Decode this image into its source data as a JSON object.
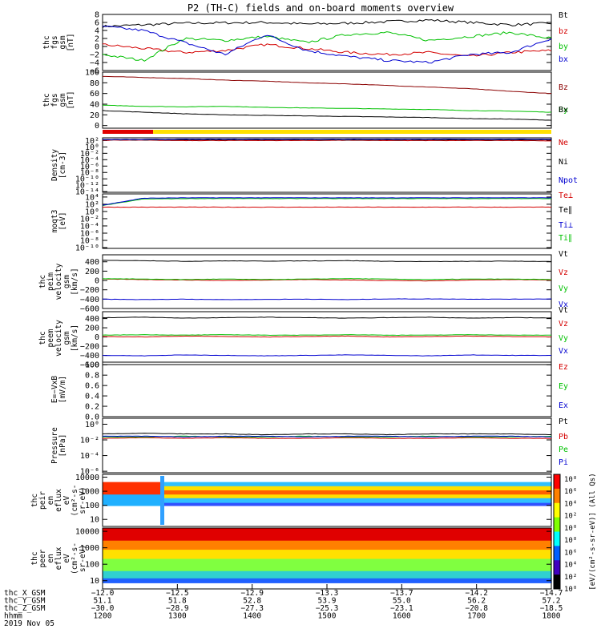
{
  "chart_data": {
    "type": "line",
    "title": "P2 (TH-C) fields and on-board moments overview",
    "panels": [
      {
        "id": "fgs_gsm",
        "ylabel": [
          "thc",
          "fgs",
          "gsm",
          "[nT]"
        ],
        "yticks": [
          "8",
          "6",
          "4",
          "2",
          "0",
          "−2",
          "−4",
          "−6"
        ],
        "ylim": [
          -6,
          8
        ],
        "legend": [
          {
            "name": "Bt",
            "color": "#000000"
          },
          {
            "name": "bz",
            "color": "#d40000"
          },
          {
            "name": "by",
            "color": "#00c000"
          },
          {
            "name": "bx",
            "color": "#0000d0"
          }
        ],
        "series": [
          {
            "name": "Bt",
            "color": "#000000",
            "values": [
              5.0,
              5.4,
              5.8,
              5.9,
              6.0,
              5.6,
              5.8,
              6.2,
              6.6,
              6.0,
              5.4,
              5.8
            ]
          },
          {
            "name": "bz",
            "color": "#d40000",
            "values": [
              0.5,
              -0.5,
              -1.5,
              -1.0,
              0.5,
              -0.5,
              -1.5,
              -2.0,
              -1.5,
              -2.5,
              -1.5,
              -1.0
            ]
          },
          {
            "name": "by",
            "color": "#00c000",
            "values": [
              -2.0,
              -3.5,
              2.0,
              1.5,
              2.5,
              1.0,
              3.0,
              3.5,
              1.5,
              2.5,
              3.5,
              2.0
            ]
          },
          {
            "name": "bx",
            "color": "#0000d0",
            "values": [
              5.0,
              4.0,
              1.0,
              -2.0,
              3.0,
              -1.0,
              -2.5,
              -3.5,
              -4.0,
              -2.0,
              -1.5,
              2.0
            ]
          }
        ]
      },
      {
        "id": "fgs_gse",
        "ylabel": [
          "thc",
          "fgs",
          "gsm",
          "[nT]"
        ],
        "yticks": [
          "100",
          "80",
          "60",
          "40",
          "20",
          "0"
        ],
        "ylim": [
          -5,
          100
        ],
        "legend": [
          {
            "name": "Bz",
            "color": "#8b0000"
          },
          {
            "name": "By",
            "color": "#00c000"
          },
          {
            "name": "Bx",
            "color": "#000000"
          }
        ],
        "series": [
          {
            "name": "Bz",
            "color": "#8b0000",
            "values": [
              92,
              90,
              88,
              85,
              83,
              80,
              78,
              75,
              72,
              69,
              64,
              60
            ]
          },
          {
            "name": "By",
            "color": "#00c000",
            "values": [
              38,
              36,
              35,
              36,
              34,
              33,
              32,
              31,
              30,
              28,
              27,
              25
            ]
          },
          {
            "name": "Bx",
            "color": "#000000",
            "values": [
              28,
              25,
              22,
              20,
              19,
              18,
              17,
              16,
              15,
              13,
              12,
              10
            ]
          }
        ]
      },
      {
        "id": "density",
        "ylabel": [
          "Density",
          "[cm-3]"
        ],
        "yticks": [
          "10²",
          "10⁰",
          "10⁻²",
          "10⁻⁴",
          "10⁻⁶",
          "10⁻⁸",
          "10⁻¹⁰",
          "10⁻¹²",
          "10⁻¹⁴"
        ],
        "ylim": [
          -14,
          2
        ],
        "log": true,
        "legend": [
          {
            "name": "Ne",
            "color": "#d40000"
          },
          {
            "name": "Ni",
            "color": "#000000"
          },
          {
            "name": "Npot",
            "color": "#0000d0"
          }
        ],
        "series": [
          {
            "name": "Ne",
            "color": "#d40000",
            "values": [
              1.3,
              1.3,
              1.2,
              1.2,
              1.2,
              1.2,
              1.3,
              1.2,
              1.2,
              1.2,
              1.2,
              1.1
            ]
          },
          {
            "name": "Ni",
            "color": "#000000",
            "values": [
              1.4,
              1.4,
              1.4,
              1.4,
              1.4,
              1.4,
              1.4,
              1.4,
              1.4,
              1.4,
              1.4,
              1.4
            ]
          },
          {
            "name": "Npot",
            "color": "#0000d0",
            "values": [
              1.5,
              1.5,
              1.6,
              1.6,
              1.6,
              1.6,
              1.6,
              1.6,
              1.6,
              1.6,
              1.6,
              1.6
            ]
          }
        ]
      },
      {
        "id": "temperature",
        "ylabel": [
          "moqt3",
          "[eV]"
        ],
        "yticks": [
          "10⁴",
          "10²",
          "10⁰",
          "10⁻²",
          "10⁻⁴",
          "10⁻⁶",
          "10⁻⁸",
          "10⁻¹⁰"
        ],
        "ylim": [
          -10,
          4
        ],
        "log": true,
        "legend": [
          {
            "name": "Te⊥",
            "color": "#d40000"
          },
          {
            "name": "Te∥",
            "color": "#000000"
          },
          {
            "name": "Ti⊥",
            "color": "#0000d0"
          },
          {
            "name": "Ti∥",
            "color": "#00c000"
          }
        ],
        "series": [
          {
            "name": "Te⊥",
            "color": "#d40000",
            "values": [
              0.6,
              0.6,
              0.6,
              0.6,
              0.6,
              0.6,
              0.6,
              0.6,
              0.6,
              0.6,
              0.6,
              0.6
            ]
          },
          {
            "name": "Ti∥",
            "color": "#00c000",
            "values": [
              1.0,
              2.7,
              2.8,
              2.8,
              2.8,
              2.8,
              2.8,
              2.8,
              2.8,
              2.8,
              2.8,
              2.8
            ]
          },
          {
            "name": "Ti⊥",
            "color": "#0000d0",
            "values": [
              1.1,
              2.9,
              3.0,
              3.0,
              3.0,
              3.0,
              3.0,
              3.0,
              3.0,
              3.0,
              3.0,
              3.0
            ]
          }
        ]
      },
      {
        "id": "peim_velocity",
        "ylabel": [
          "thc",
          "peim",
          "velocity",
          "gsm",
          "[km/s]"
        ],
        "yticks": [
          "400",
          "200",
          "0",
          "−200",
          "−400",
          "−600"
        ],
        "ylim": [
          -600,
          550
        ],
        "legend": [
          {
            "name": "Vt",
            "color": "#000000"
          },
          {
            "name": "Vz",
            "color": "#d40000"
          },
          {
            "name": "Vy",
            "color": "#00c000"
          },
          {
            "name": "Vx",
            "color": "#0000d0"
          }
        ],
        "series": [
          {
            "name": "Vt",
            "color": "#000000",
            "values": [
              430,
              425,
              410,
              420,
              415,
              420,
              425,
              410,
              405,
              410,
              415,
              405
            ]
          },
          {
            "name": "Vz",
            "color": "#d40000",
            "values": [
              30,
              20,
              10,
              0,
              10,
              20,
              10,
              0,
              -10,
              10,
              20,
              10
            ]
          },
          {
            "name": "Vy",
            "color": "#00c000",
            "values": [
              40,
              30,
              20,
              30,
              20,
              30,
              40,
              30,
              20,
              30,
              30,
              20
            ]
          },
          {
            "name": "Vx",
            "color": "#0000d0",
            "values": [
              -400,
              -410,
              -400,
              -410,
              -405,
              -400,
              -410,
              -395,
              -395,
              -400,
              -400,
              -395
            ]
          }
        ]
      },
      {
        "id": "peem_velocity",
        "ylabel": [
          "thc",
          "peem",
          "velocity",
          "gsm",
          "[km/s]"
        ],
        "yticks": [
          "400",
          "200",
          "0",
          "−200",
          "−400",
          "−600"
        ],
        "ylim": [
          -600,
          550
        ],
        "legend": [
          {
            "name": "Vt",
            "color": "#000000"
          },
          {
            "name": "Vz",
            "color": "#d40000"
          },
          {
            "name": "Vy",
            "color": "#00c000"
          },
          {
            "name": "Vx",
            "color": "#0000d0"
          }
        ],
        "series": [
          {
            "name": "Vt",
            "color": "#000000",
            "values": [
              420,
              430,
              410,
              420,
              430,
              420,
              410,
              420,
              430,
              410,
              420,
              415
            ]
          },
          {
            "name": "Vz",
            "color": "#d40000",
            "values": [
              10,
              0,
              20,
              10,
              0,
              10,
              20,
              0,
              10,
              20,
              10,
              0
            ]
          },
          {
            "name": "Vy",
            "color": "#00c000",
            "values": [
              40,
              50,
              40,
              50,
              40,
              40,
              50,
              40,
              40,
              50,
              40,
              40
            ]
          },
          {
            "name": "Vx",
            "color": "#0000d0",
            "values": [
              -400,
              -410,
              -390,
              -400,
              -410,
              -400,
              -390,
              -400,
              -410,
              -390,
              -400,
              -400
            ]
          }
        ]
      },
      {
        "id": "efield",
        "ylabel": [
          "E=−VxB",
          "[mV/m]"
        ],
        "yticks": [
          "1.0",
          "0.8",
          "0.6",
          "0.4",
          "0.2",
          "0.0"
        ],
        "ylim": [
          0,
          1.05
        ],
        "legend": [
          {
            "name": "Ez",
            "color": "#d40000"
          },
          {
            "name": "Ey",
            "color": "#00c000"
          },
          {
            "name": "Ex",
            "color": "#0000d0"
          }
        ],
        "series": []
      },
      {
        "id": "pressure",
        "ylabel": [
          "Pressure",
          "[nPa]"
        ],
        "yticks": [
          "10⁰",
          "10⁻²",
          "10⁻⁴",
          "10⁻⁶"
        ],
        "ylim": [
          -6.5,
          0.8
        ],
        "log": true,
        "legend": [
          {
            "name": "Pt",
            "color": "#000000"
          },
          {
            "name": "Pb",
            "color": "#d40000"
          },
          {
            "name": "Pe",
            "color": "#00c000"
          },
          {
            "name": "Pi",
            "color": "#0000d0"
          }
        ],
        "series": [
          {
            "name": "Pt",
            "color": "#000000",
            "values": [
              -1.3,
              -1.2,
              -1.3,
              -1.3,
              -1.4,
              -1.3,
              -1.3,
              -1.4,
              -1.3,
              -1.3,
              -1.3,
              -1.4
            ]
          },
          {
            "name": "Pb",
            "color": "#d40000",
            "values": [
              -1.9,
              -1.8,
              -1.9,
              -1.8,
              -1.9,
              -1.9,
              -1.8,
              -1.9,
              -1.9,
              -1.8,
              -1.9,
              -1.9
            ]
          },
          {
            "name": "Pe",
            "color": "#00c000",
            "values": [
              -1.7,
              -1.7,
              -1.6,
              -1.7,
              -1.7,
              -1.6,
              -1.7,
              -1.7,
              -1.6,
              -1.7,
              -1.7,
              -1.6
            ]
          },
          {
            "name": "Pi",
            "color": "#0000d0",
            "values": [
              -1.6,
              -1.6,
              -1.7,
              -1.6,
              -1.6,
              -1.7,
              -1.6,
              -1.6,
              -1.7,
              -1.6,
              -1.6,
              -1.7
            ]
          }
        ]
      },
      {
        "id": "peir_spectrogram",
        "type": "heatmap",
        "ylabel": [
          "thc",
          "peir",
          "en",
          "eflux",
          "eV",
          "(cm²-s-",
          "sr-eV)"
        ],
        "yticks": [
          "10000",
          "1000",
          "100",
          "10"
        ],
        "ylim": [
          0.5,
          4.2
        ],
        "log": true
      },
      {
        "id": "peer_spectrogram",
        "type": "heatmap",
        "ylabel": [
          "thc",
          "peer",
          "en",
          "eflux",
          "eV",
          "(cm²-s-",
          "sr-eV)"
        ],
        "yticks": [
          "10000",
          "1000",
          "100",
          "10"
        ],
        "ylim": [
          0.5,
          4.2
        ],
        "log": true
      }
    ],
    "colorbar": {
      "ticks": [
        "10⁸",
        "10⁶",
        "10⁴",
        "10²",
        "10⁰",
        "10⁸",
        "10⁶",
        "10⁴",
        "10²",
        "10⁰"
      ],
      "label": "[eV/(cm²-s-sr-eV)] (All Qs)"
    },
    "x_labels": {
      "rows": [
        {
          "name": "thc_X_GSM",
          "values": [
            "−12.0",
            "−12.5",
            "−12.9",
            "−13.3",
            "−13.7",
            "−14.2",
            "−14.7"
          ]
        },
        {
          "name": "thc_Y_GSM",
          "values": [
            "51.1",
            "51.8",
            "52.8",
            "53.9",
            "55.0",
            "56.2",
            "57.2"
          ]
        },
        {
          "name": "thc_Z_GSM",
          "values": [
            "−30.0",
            "−28.9",
            "−27.3",
            "−25.3",
            "−23.1",
            "−20.8",
            "−18.5"
          ]
        },
        {
          "name": "hhmm",
          "values": [
            "1200",
            "1300",
            "1400",
            "1500",
            "1600",
            "1700",
            "1800"
          ]
        }
      ],
      "date": "2019 Nov 05"
    }
  }
}
